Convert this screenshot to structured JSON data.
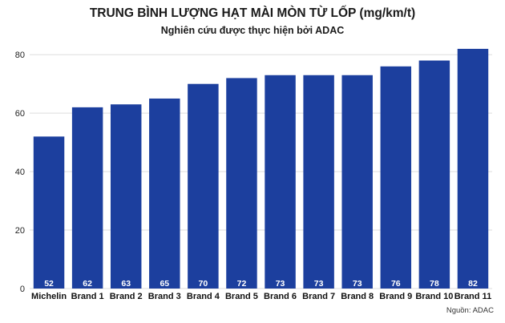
{
  "chart_data": {
    "type": "bar",
    "title": "TRUNG BÌNH LƯỢNG HẠT MÀI MÒN TỪ LỐP (mg/km/t)",
    "subtitle": "Nghiên cứu được thực hiện bởi ADAC",
    "source": "Nguồn: ADAC",
    "categories": [
      "Michelin",
      "Brand 1",
      "Brand 2",
      "Brand 3",
      "Brand 4",
      "Brand 5",
      "Brand 6",
      "Brand 7",
      "Brand 8",
      "Brand 9",
      "Brand 10",
      "Brand 11"
    ],
    "values": [
      52,
      62,
      63,
      65,
      70,
      72,
      73,
      73,
      73,
      76,
      78,
      82
    ],
    "ylim": [
      0,
      85
    ],
    "yticks": [
      0,
      20,
      40,
      60,
      80
    ],
    "grid": true,
    "bar_color": "#1c3f9e",
    "grid_color": "#dddddd"
  }
}
